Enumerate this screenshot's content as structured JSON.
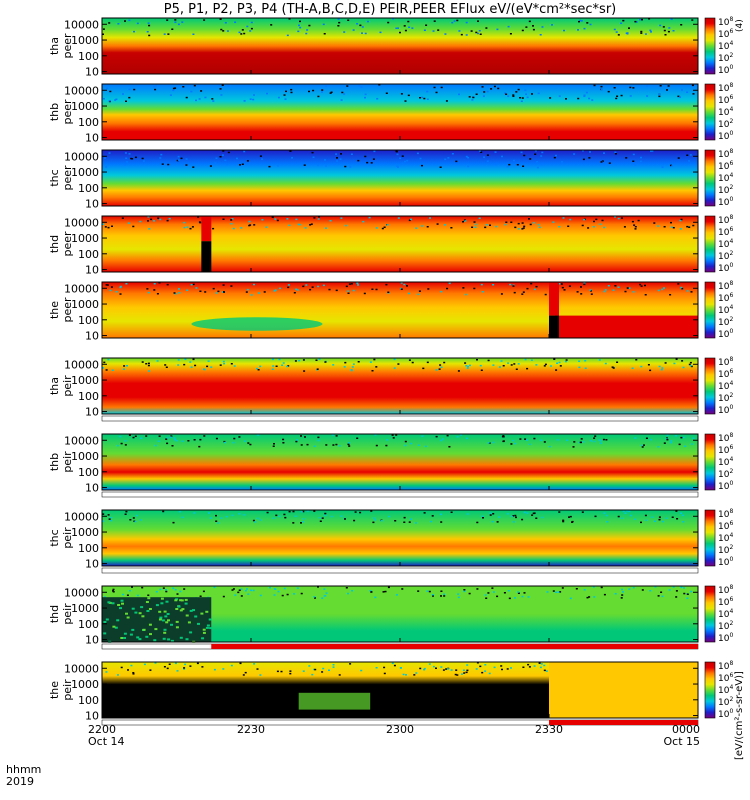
{
  "title": "P5, P1, P2, P3, P4 (TH-A,B,C,D,E) PEIR,PEER EFlux eV/(eV*cm²*sec*sr)",
  "colorbar_unit_label": "[eV/(cm²-s-sr-eV)]",
  "time_axis": {
    "label_line1": "hhmm",
    "label_line2": "2019",
    "ticks": [
      "2200",
      "2230",
      "2300",
      "2330",
      "0000"
    ],
    "dates": [
      "Oct 14",
      "Oct 15"
    ]
  },
  "colors": {
    "scale": [
      "#78007c",
      "#1e1ec8",
      "#0078ff",
      "#00c8dc",
      "#00c878",
      "#64dc32",
      "#e6e600",
      "#ffc800",
      "#ff7800",
      "#e60000",
      "#c80000"
    ],
    "flag_white": "#ffffff",
    "flag_red": "#e60000",
    "fill_black": "#000000"
  },
  "chart_data": {
    "type": "heatmap",
    "x_range": [
      "2019-10-14 22:00",
      "2019-10-15 00:00"
    ],
    "y_scale": "log",
    "y_range_eV": [
      7,
      25000
    ],
    "y_ticks": [
      "10000",
      "1000",
      "100",
      "10"
    ],
    "colorbar_ticks_exp": [
      8,
      6,
      4,
      2,
      0
    ],
    "panels": [
      {
        "probe": "tha",
        "instrument": "peer",
        "label1": "tha",
        "label2": "peer",
        "profile": "peer_dense",
        "bar_label": "(4)",
        "flag": null
      },
      {
        "probe": "thb",
        "instrument": "peer",
        "label1": "thb",
        "label2": "peer",
        "profile": "peer_band",
        "bar_label": "",
        "flag": null
      },
      {
        "probe": "thc",
        "instrument": "peer",
        "label1": "thc",
        "label2": "peer",
        "profile": "peer_low",
        "bar_label": "",
        "flag": null
      },
      {
        "probe": "thd",
        "instrument": "peer",
        "label1": "thd",
        "label2": "peer",
        "profile": "peer_warm",
        "bar_label": "",
        "flag": null
      },
      {
        "probe": "the",
        "instrument": "peer",
        "label1": "the",
        "label2": "peer",
        "profile": "peer_hot",
        "bar_label": "",
        "flag": null
      },
      {
        "probe": "tha",
        "instrument": "peir",
        "label1": "tha",
        "label2": "peir",
        "profile": "peir_dense",
        "bar_label": "",
        "flag": "white"
      },
      {
        "probe": "thb",
        "instrument": "peir",
        "label1": "thb",
        "label2": "peir",
        "profile": "peir_band",
        "bar_label": "",
        "flag": "white"
      },
      {
        "probe": "thc",
        "instrument": "peir",
        "label1": "thc",
        "label2": "peir",
        "profile": "peir_band2",
        "bar_label": "",
        "flag": "white"
      },
      {
        "probe": "thd",
        "instrument": "peir",
        "label1": "thd",
        "label2": "peir",
        "profile": "peir_sparse",
        "bar_label": "",
        "flag": "red_after_2220"
      },
      {
        "probe": "the",
        "instrument": "peir",
        "label1": "the",
        "label2": "peir",
        "profile": "peir_gap",
        "bar_label": "",
        "flag": "red_after_2330"
      }
    ]
  }
}
